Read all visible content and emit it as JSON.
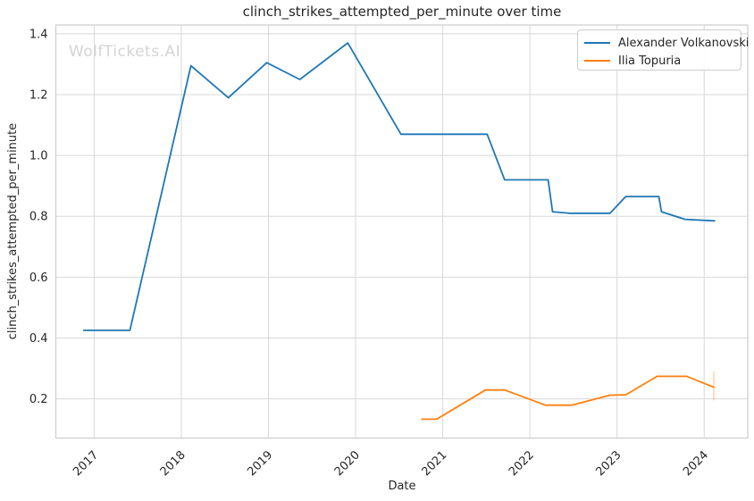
{
  "watermark": "WolfTickets.AI",
  "style": {
    "background_color": "#ffffff",
    "grid_color": "#d8d8d8",
    "spine_color": "#cccccc",
    "text_color": "#262626",
    "watermark_color": "#d4d4d4"
  },
  "chart_data": {
    "type": "line",
    "title": "clinch_strikes_attempted_per_minute over time",
    "xlabel": "Date",
    "ylabel": "clinch_strikes_attempted_per_minute",
    "grid": true,
    "legend_position": "upper right",
    "x_range": [
      2016.56,
      2024.5
    ],
    "y_range": [
      0.071,
      1.429
    ],
    "x_ticks": [
      2017,
      2018,
      2019,
      2020,
      2021,
      2022,
      2023,
      2024
    ],
    "y_ticks": [
      0.2,
      0.4,
      0.6,
      0.8,
      1.0,
      1.2,
      1.4
    ],
    "series": [
      {
        "name": "Alexander Volkanovski",
        "color": "#1f77b4",
        "x": [
          2016.88,
          2017.41,
          2018.11,
          2018.54,
          2018.98,
          2019.36,
          2019.91,
          2020.52,
          2021.51,
          2021.71,
          2022.21,
          2022.26,
          2022.46,
          2022.92,
          2023.1,
          2023.48,
          2023.51,
          2023.78,
          2024.12
        ],
        "y": [
          0.425,
          0.425,
          1.295,
          1.19,
          1.305,
          1.25,
          1.37,
          1.07,
          1.07,
          0.92,
          0.92,
          0.815,
          0.81,
          0.81,
          0.865,
          0.865,
          0.815,
          0.79,
          0.785
        ]
      },
      {
        "name": "Ilia Topuria",
        "color": "#ff7f0e",
        "x": [
          2020.76,
          2020.93,
          2021.49,
          2021.71,
          2022.18,
          2022.48,
          2022.92,
          2023.1,
          2023.46,
          2023.8,
          2024.11
        ],
        "y": [
          0.133,
          0.133,
          0.229,
          0.229,
          0.179,
          0.179,
          0.212,
          0.213,
          0.274,
          0.274,
          0.238
        ],
        "end_tick": {
          "x": 2024.11,
          "y_from": 0.195,
          "y_to": 0.29
        }
      }
    ]
  }
}
